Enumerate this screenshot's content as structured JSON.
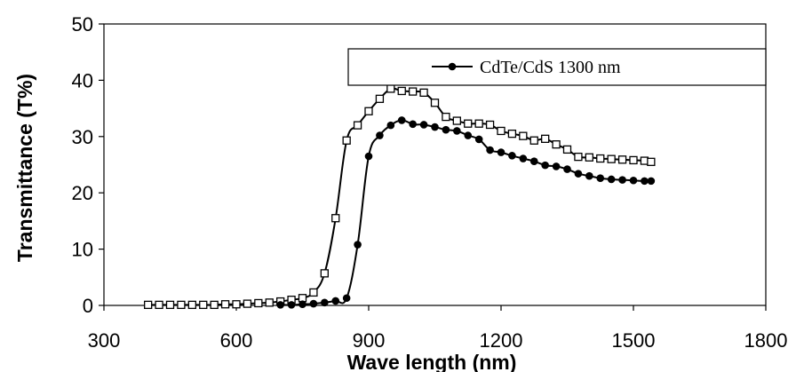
{
  "chart_data": {
    "type": "line",
    "title": "",
    "xlabel": "Wave length (nm)",
    "ylabel": "Transmittance (T%)",
    "xlim": [
      300,
      1800
    ],
    "ylim": [
      0,
      50
    ],
    "xticks": [
      300,
      600,
      900,
      1200,
      1500,
      1800
    ],
    "yticks": [
      0,
      10,
      20,
      30,
      40,
      50
    ],
    "grid": false,
    "legend_position": "top-right",
    "series": [
      {
        "name": "",
        "marker": "open-square",
        "color": "#000000",
        "x": [
          400,
          425,
          450,
          475,
          500,
          525,
          550,
          575,
          600,
          625,
          650,
          675,
          700,
          725,
          750,
          775,
          800,
          825,
          850,
          875,
          900,
          925,
          950,
          975,
          1000,
          1025,
          1050,
          1075,
          1100,
          1125,
          1150,
          1175,
          1200,
          1225,
          1250,
          1275,
          1300,
          1325,
          1350,
          1375,
          1400,
          1425,
          1450,
          1475,
          1500,
          1525,
          1540
        ],
        "y": [
          0.1,
          0.1,
          0.1,
          0.1,
          0.1,
          0.1,
          0.1,
          0.2,
          0.2,
          0.3,
          0.4,
          0.5,
          0.7,
          1.0,
          1.3,
          2.3,
          5.7,
          15.5,
          29.3,
          32.0,
          34.5,
          36.7,
          38.5,
          38.1,
          38.0,
          37.8,
          36.0,
          33.5,
          32.8,
          32.3,
          32.3,
          32.1,
          31.0,
          30.5,
          30.1,
          29.3,
          29.6,
          28.6,
          27.7,
          26.4,
          26.3,
          26.1,
          26.0,
          25.9,
          25.8,
          25.7,
          25.5
        ]
      },
      {
        "name": "CdTe/CdS 1300 nm",
        "marker": "filled-circle",
        "color": "#000000",
        "x": [
          700,
          725,
          750,
          775,
          800,
          825,
          850,
          875,
          900,
          925,
          950,
          975,
          1000,
          1025,
          1050,
          1075,
          1100,
          1125,
          1150,
          1175,
          1200,
          1225,
          1250,
          1275,
          1300,
          1325,
          1350,
          1375,
          1400,
          1425,
          1450,
          1475,
          1500,
          1525,
          1540
        ],
        "y": [
          0.1,
          0.1,
          0.2,
          0.3,
          0.5,
          0.8,
          1.3,
          10.8,
          26.5,
          30.2,
          32.0,
          32.9,
          32.2,
          32.1,
          31.7,
          31.2,
          31.0,
          30.2,
          29.5,
          27.6,
          27.2,
          26.6,
          26.1,
          25.6,
          24.9,
          24.7,
          24.2,
          23.4,
          23.0,
          22.6,
          22.4,
          22.3,
          22.2,
          22.1,
          22.1
        ]
      }
    ]
  }
}
